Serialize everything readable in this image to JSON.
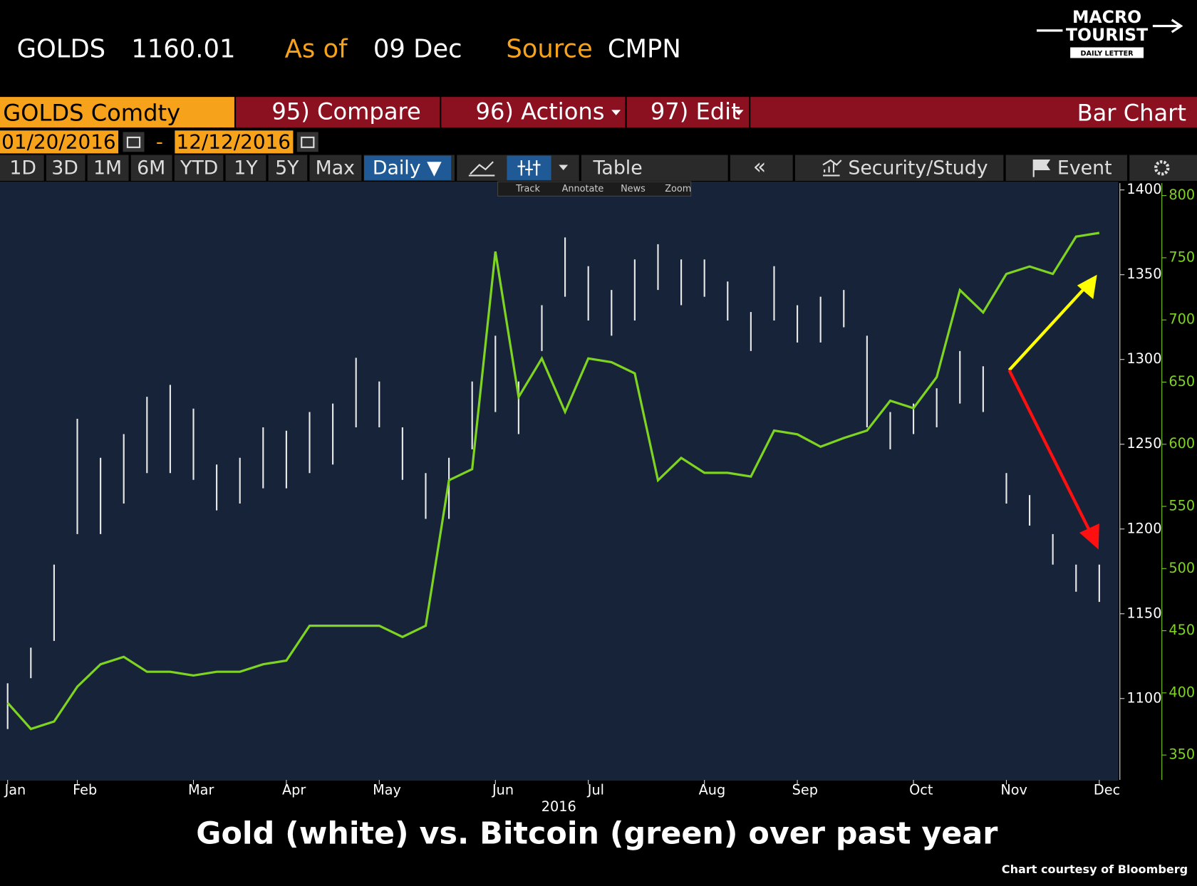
{
  "header": {
    "ticker": "GOLDS",
    "price": "1160.01",
    "as_of_label": "As of",
    "as_of": "09 Dec",
    "source_label": "Source",
    "source": "CMPN"
  },
  "logo": {
    "line1": "MACRO",
    "line2": "TOURIST",
    "line3": "DAILY LETTER"
  },
  "toolbar": {
    "security": "GOLDS Comdty",
    "compare": "95) Compare",
    "actions": "96) Actions",
    "edit": "97) Edit",
    "chart_type": "Bar Chart",
    "start_date": "01/20/2016",
    "date_separator": "-",
    "end_date": "12/12/2016",
    "periods": [
      "1D",
      "3D",
      "1M",
      "6M",
      "YTD",
      "1Y",
      "5Y",
      "Max"
    ],
    "frequency": "Daily ▼",
    "table": "Table",
    "security_study": "Security/Study",
    "event": "Event",
    "tools": [
      "Track",
      "Annotate",
      "News",
      "Zoom"
    ]
  },
  "chart_data": {
    "type": "ohlc",
    "x_label": "2016",
    "categories": [
      "Jan",
      null,
      null,
      "Feb",
      null,
      null,
      null,
      null,
      "Mar",
      null,
      null,
      null,
      "Apr",
      null,
      null,
      null,
      "May",
      null,
      null,
      null,
      null,
      "Jun",
      null,
      null,
      null,
      "Jul",
      null,
      null,
      null,
      null,
      "Aug",
      null,
      null,
      null,
      "Sep",
      null,
      null,
      null,
      null,
      "Oct",
      null,
      null,
      null,
      "Nov",
      null,
      null,
      null,
      "Dec"
    ],
    "series": [
      {
        "type": "ohlc",
        "color": "#e8e8e8",
        "high": [
          1109,
          1130,
          1179,
          1265,
          1242,
          1256,
          1278,
          1285,
          1271,
          1238,
          1242,
          1260,
          1258,
          1269,
          1274,
          1301,
          1287,
          1260,
          1233,
          1242,
          1287,
          1314,
          1287,
          1332,
          1372,
          1355,
          1341,
          1359,
          1368,
          1359,
          1359,
          1346,
          1328,
          1355,
          1332,
          1337,
          1341,
          1314,
          1269,
          1274,
          1283,
          1305,
          1296,
          1233,
          1220,
          1197,
          1179,
          1179
        ],
        "low": [
          1082,
          1112,
          1134,
          1197,
          1197,
          1215,
          1233,
          1233,
          1229,
          1211,
          1215,
          1224,
          1224,
          1233,
          1238,
          1260,
          1260,
          1229,
          1206,
          1206,
          1247,
          1269,
          1256,
          1305,
          1337,
          1323,
          1314,
          1323,
          1341,
          1332,
          1337,
          1323,
          1305,
          1323,
          1310,
          1310,
          1319,
          1260,
          1247,
          1256,
          1260,
          1274,
          1269,
          1215,
          1202,
          1179,
          1163,
          1157
        ]
      },
      {
        "type": "line",
        "color": "#7fd321",
        "axis": "y2",
        "values": [
          392,
          371,
          377,
          405,
          423,
          429,
          417,
          417,
          414,
          417,
          417,
          423,
          426,
          454,
          454,
          454,
          454,
          445,
          454,
          571,
          580,
          755,
          638,
          669,
          626,
          669,
          666,
          657,
          571,
          589,
          577,
          577,
          574,
          611,
          608,
          598,
          605,
          611,
          635,
          629,
          654,
          724,
          706,
          737,
          743,
          737,
          767,
          770
        ]
      }
    ],
    "ylim": [
      1052,
      1404
    ],
    "yticks": [
      1100,
      1150,
      1200,
      1250,
      1300,
      1350,
      1400
    ],
    "y2lim": [
      330,
      810
    ],
    "y2ticks": [
      350,
      400,
      450,
      500,
      550,
      600,
      650,
      700,
      750,
      800
    ],
    "grid": false
  },
  "caption": "Gold (white) vs. Bitcoin (green) over past year",
  "credit": "Chart courtesy of Bloomberg"
}
